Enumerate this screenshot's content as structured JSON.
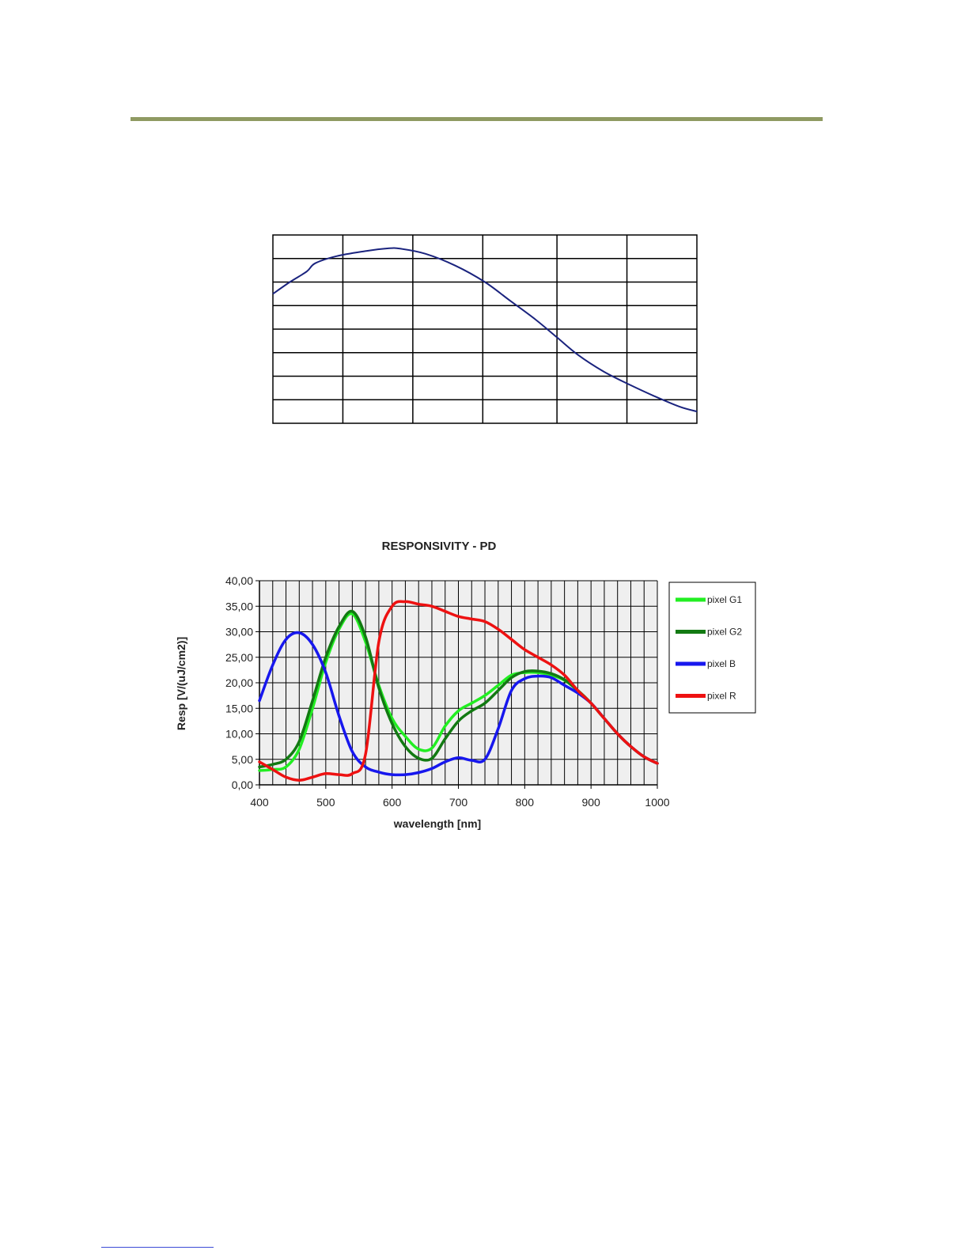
{
  "page": {
    "header_rule_color": "#8f9a62",
    "footer_rule_color": "#3b4bd6"
  },
  "chart_data": [
    {
      "type": "line",
      "title": "",
      "xlabel": "",
      "ylabel": "",
      "grid": true,
      "legend": "none",
      "xlim": [
        0,
        1
      ],
      "ylim": [
        0,
        8
      ],
      "x_gridlines": [
        0.165,
        0.33,
        0.495,
        0.67,
        0.835
      ],
      "y_gridlines": [
        1,
        2,
        3,
        4,
        5,
        6,
        7
      ],
      "series": [
        {
          "color": "#1a237e",
          "x": [
            0.0,
            0.04,
            0.08,
            0.1,
            0.15,
            0.22,
            0.27,
            0.3,
            0.36,
            0.43,
            0.5,
            0.56,
            0.62,
            0.67,
            0.72,
            0.78,
            0.84,
            0.9,
            0.96,
            1.0
          ],
          "y": [
            5.5,
            6.0,
            6.45,
            6.8,
            7.1,
            7.32,
            7.43,
            7.42,
            7.2,
            6.7,
            6.0,
            5.2,
            4.4,
            3.65,
            2.9,
            2.2,
            1.65,
            1.15,
            0.7,
            0.5
          ]
        }
      ]
    },
    {
      "type": "line",
      "title": "RESPONSIVITY - PD",
      "xlabel": "wavelength [nm]",
      "ylabel": "Resp [V/(uJ/cm2)]",
      "xlim": [
        400,
        1000
      ],
      "ylim": [
        0,
        40
      ],
      "xticks": [
        "400",
        "500",
        "600",
        "700",
        "800",
        "900",
        "1000"
      ],
      "yticks": [
        "0,00",
        "5,00",
        "10,00",
        "15,00",
        "20,00",
        "25,00",
        "30,00",
        "35,00",
        "40,00"
      ],
      "grid": true,
      "legend": "right",
      "series": [
        {
          "name": "pixel G1",
          "color": "#22ee22",
          "x": [
            400,
            420,
            440,
            460,
            480,
            500,
            520,
            540,
            560,
            580,
            600,
            620,
            640,
            660,
            680,
            700,
            720,
            740,
            760,
            780,
            800,
            820,
            840,
            860,
            880,
            900,
            920,
            940,
            960,
            980,
            1000
          ],
          "y": [
            2.8,
            3.0,
            3.5,
            7.0,
            15.0,
            24.0,
            30.5,
            33.5,
            28.0,
            19.5,
            13.0,
            9.5,
            7.0,
            7.2,
            11.5,
            14.5,
            16.0,
            17.5,
            19.5,
            21.5,
            22.0,
            22.0,
            21.5,
            20.5,
            18.5,
            16.0,
            13.0,
            10.0,
            7.5,
            5.5,
            4.2
          ]
        },
        {
          "name": "pixel G2",
          "color": "#127a12",
          "x": [
            400,
            420,
            440,
            460,
            480,
            500,
            520,
            540,
            560,
            580,
            600,
            620,
            640,
            660,
            680,
            700,
            720,
            740,
            760,
            780,
            800,
            820,
            840,
            860,
            880,
            900,
            920,
            940,
            960,
            980,
            1000
          ],
          "y": [
            3.5,
            4.0,
            5.0,
            8.5,
            16.5,
            25.0,
            31.0,
            34.0,
            29.0,
            19.0,
            12.0,
            7.5,
            5.2,
            5.2,
            9.0,
            12.5,
            14.5,
            16.0,
            18.5,
            21.0,
            22.2,
            22.3,
            21.8,
            20.6,
            18.5,
            16.0,
            13.0,
            10.0,
            7.5,
            5.5,
            4.2
          ]
        },
        {
          "name": "pixel B",
          "color": "#1717ee",
          "x": [
            400,
            420,
            440,
            460,
            480,
            500,
            520,
            540,
            560,
            580,
            600,
            620,
            640,
            660,
            680,
            700,
            720,
            740,
            760,
            780,
            800,
            820,
            840,
            860,
            880,
            900,
            920,
            940,
            960,
            980,
            1000
          ],
          "y": [
            16.5,
            23.5,
            28.5,
            29.8,
            27.5,
            22.0,
            13.5,
            6.5,
            3.5,
            2.5,
            2.0,
            2.0,
            2.4,
            3.2,
            4.5,
            5.3,
            4.8,
            5.0,
            11.0,
            18.5,
            20.8,
            21.3,
            21.0,
            19.5,
            18.0,
            16.0,
            13.0,
            10.0,
            7.5,
            5.5,
            4.2
          ]
        },
        {
          "name": "pixel R",
          "color": "#ee1111",
          "x": [
            400,
            420,
            440,
            460,
            480,
            500,
            520,
            540,
            560,
            580,
            600,
            620,
            640,
            660,
            680,
            700,
            720,
            740,
            760,
            780,
            800,
            820,
            840,
            860,
            880,
            900,
            920,
            940,
            960,
            980,
            1000
          ],
          "y": [
            4.5,
            3.0,
            1.5,
            0.9,
            1.5,
            2.2,
            2.0,
            2.2,
            6.0,
            28.0,
            35.0,
            35.9,
            35.4,
            35.0,
            34.0,
            33.0,
            32.5,
            32.0,
            30.5,
            28.5,
            26.5,
            25.0,
            23.5,
            21.5,
            18.5,
            16.0,
            13.0,
            10.0,
            7.5,
            5.5,
            4.2
          ]
        }
      ]
    }
  ]
}
